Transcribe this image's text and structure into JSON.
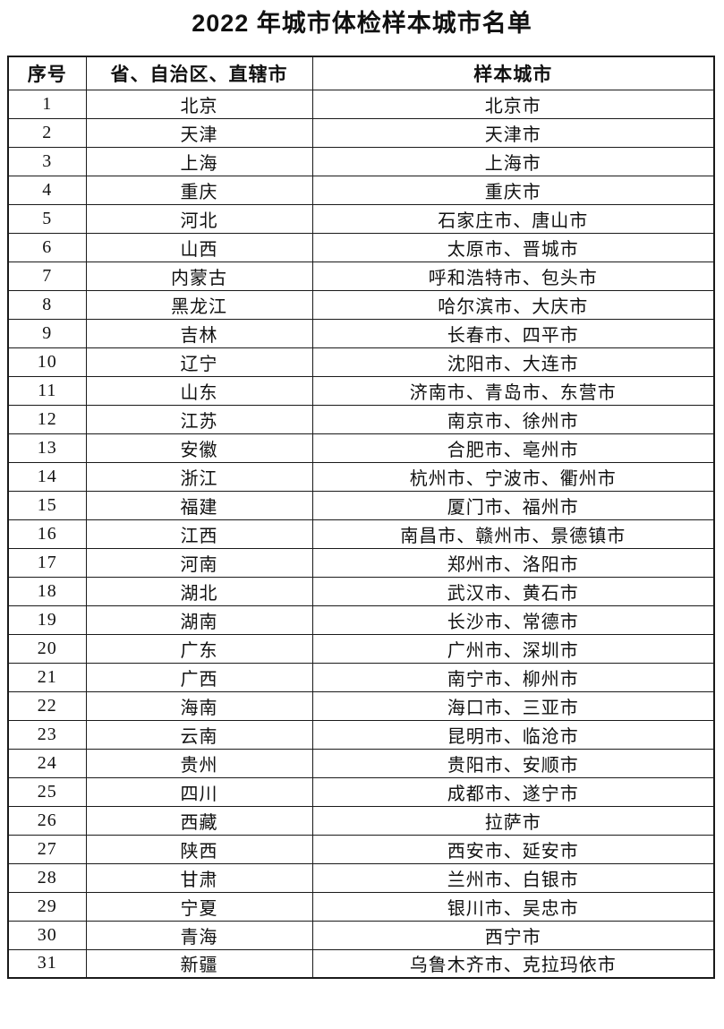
{
  "page": {
    "title": "2022 年城市体检样本城市名单"
  },
  "colors": {
    "background": "#ffffff",
    "text": "#111111",
    "border": "#1a1a1a"
  },
  "table": {
    "headers": [
      "序号",
      "省、自治区、直辖市",
      "样本城市"
    ],
    "rows": [
      {
        "no": "1",
        "province": "北京",
        "cities": "北京市"
      },
      {
        "no": "2",
        "province": "天津",
        "cities": "天津市"
      },
      {
        "no": "3",
        "province": "上海",
        "cities": "上海市"
      },
      {
        "no": "4",
        "province": "重庆",
        "cities": "重庆市"
      },
      {
        "no": "5",
        "province": "河北",
        "cities": "石家庄市、唐山市"
      },
      {
        "no": "6",
        "province": "山西",
        "cities": "太原市、晋城市"
      },
      {
        "no": "7",
        "province": "内蒙古",
        "cities": "呼和浩特市、包头市"
      },
      {
        "no": "8",
        "province": "黑龙江",
        "cities": "哈尔滨市、大庆市"
      },
      {
        "no": "9",
        "province": "吉林",
        "cities": "长春市、四平市"
      },
      {
        "no": "10",
        "province": "辽宁",
        "cities": "沈阳市、大连市"
      },
      {
        "no": "11",
        "province": "山东",
        "cities": "济南市、青岛市、东营市"
      },
      {
        "no": "12",
        "province": "江苏",
        "cities": "南京市、徐州市"
      },
      {
        "no": "13",
        "province": "安徽",
        "cities": "合肥市、亳州市"
      },
      {
        "no": "14",
        "province": "浙江",
        "cities": "杭州市、宁波市、衢州市"
      },
      {
        "no": "15",
        "province": "福建",
        "cities": "厦门市、福州市"
      },
      {
        "no": "16",
        "province": "江西",
        "cities": "南昌市、赣州市、景德镇市"
      },
      {
        "no": "17",
        "province": "河南",
        "cities": "郑州市、洛阳市"
      },
      {
        "no": "18",
        "province": "湖北",
        "cities": "武汉市、黄石市"
      },
      {
        "no": "19",
        "province": "湖南",
        "cities": "长沙市、常德市"
      },
      {
        "no": "20",
        "province": "广东",
        "cities": "广州市、深圳市"
      },
      {
        "no": "21",
        "province": "广西",
        "cities": "南宁市、柳州市"
      },
      {
        "no": "22",
        "province": "海南",
        "cities": "海口市、三亚市"
      },
      {
        "no": "23",
        "province": "云南",
        "cities": "昆明市、临沧市"
      },
      {
        "no": "24",
        "province": "贵州",
        "cities": "贵阳市、安顺市"
      },
      {
        "no": "25",
        "province": "四川",
        "cities": "成都市、遂宁市"
      },
      {
        "no": "26",
        "province": "西藏",
        "cities": "拉萨市"
      },
      {
        "no": "27",
        "province": "陕西",
        "cities": "西安市、延安市"
      },
      {
        "no": "28",
        "province": "甘肃",
        "cities": "兰州市、白银市"
      },
      {
        "no": "29",
        "province": "宁夏",
        "cities": "银川市、吴忠市"
      },
      {
        "no": "30",
        "province": "青海",
        "cities": "西宁市"
      },
      {
        "no": "31",
        "province": "新疆",
        "cities": "乌鲁木齐市、克拉玛依市"
      }
    ]
  }
}
